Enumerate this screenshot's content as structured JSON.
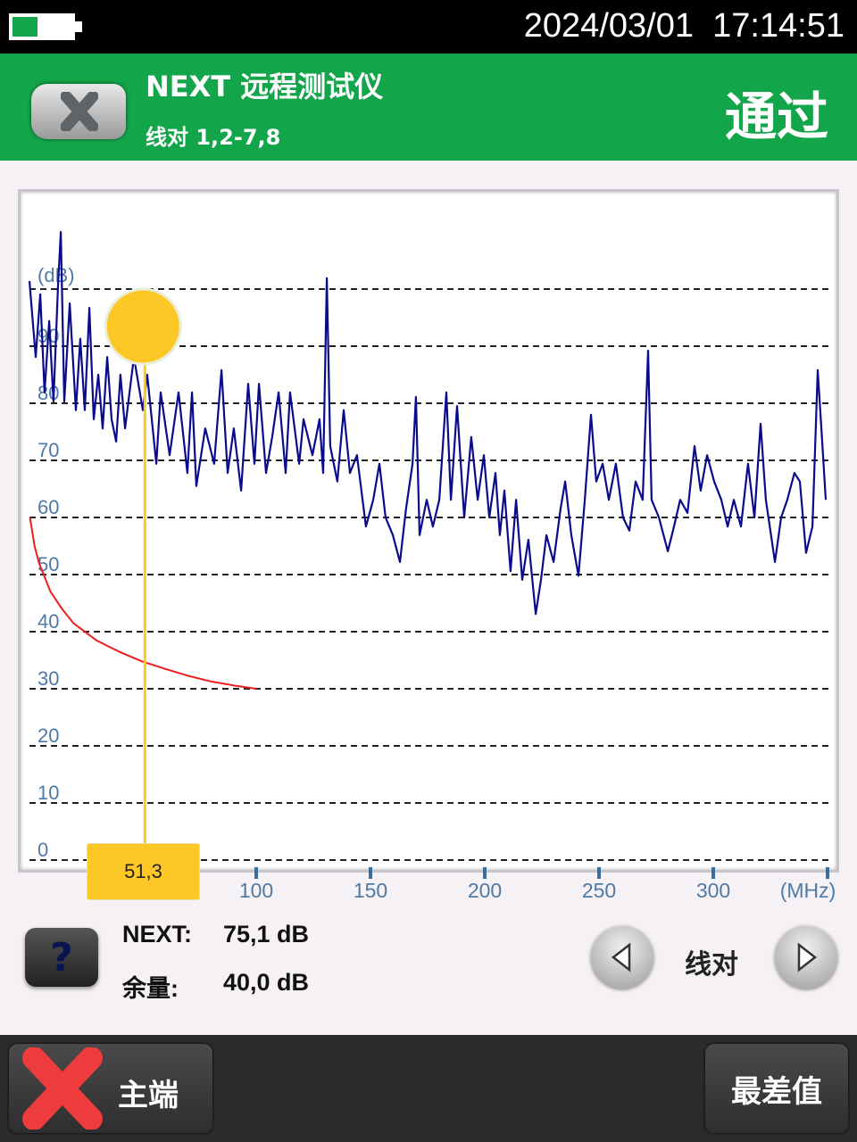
{
  "status_bar": {
    "datetime": "2024/03/01  17:14:51",
    "battery_level": 0.8,
    "battery_icon": "battery-icon"
  },
  "header": {
    "title": "NEXT 远程测试仪",
    "subtitle": "线对 1,2-7,8",
    "result": "通过",
    "back_icon": "close-x-icon",
    "color": "#13a54a"
  },
  "chart_data": {
    "type": "line",
    "xlabel": "(MHz)",
    "ylabel": "(dB)",
    "x_ticks": [
      100,
      150,
      200,
      250,
      300
    ],
    "y_ticks": [
      0,
      10,
      20,
      30,
      40,
      50,
      60,
      70,
      80,
      90
    ],
    "xlim": [
      0,
      350
    ],
    "ylim": [
      0,
      115
    ],
    "grid": true,
    "cursor": {
      "x": 51.3,
      "label": "51,3",
      "color": "#fdc825"
    },
    "series": [
      {
        "color": "#0a0a8c",
        "points": [
          [
            0.8,
            101.4
          ],
          [
            3.5,
            88.1
          ],
          [
            5.5,
            99.1
          ],
          [
            7.4,
            81.9
          ],
          [
            9.4,
            94.4
          ],
          [
            11.3,
            80.3
          ],
          [
            13.3,
            100.6
          ],
          [
            14.5,
            110
          ],
          [
            16,
            80.3
          ],
          [
            18.4,
            97.5
          ],
          [
            21.1,
            78.8
          ],
          [
            23,
            91.3
          ],
          [
            25,
            78.8
          ],
          [
            27,
            96.7
          ],
          [
            28.9,
            77.2
          ],
          [
            30.9,
            85
          ],
          [
            32.8,
            75.6
          ],
          [
            34.8,
            88.1
          ],
          [
            36.7,
            77.2
          ],
          [
            38.7,
            73.3
          ],
          [
            40.6,
            85
          ],
          [
            42.6,
            75.6
          ],
          [
            46.5,
            88.1
          ],
          [
            50.4,
            78.8
          ],
          [
            52.3,
            85
          ],
          [
            56.3,
            69.4
          ],
          [
            58.2,
            81.9
          ],
          [
            62.1,
            70.9
          ],
          [
            66,
            81.9
          ],
          [
            69.9,
            67.8
          ],
          [
            71.9,
            81.9
          ],
          [
            73.8,
            65.5
          ],
          [
            77.7,
            75.6
          ],
          [
            81.6,
            69.4
          ],
          [
            84.8,
            85.8
          ],
          [
            87.5,
            67.8
          ],
          [
            90.2,
            75.6
          ],
          [
            93.4,
            64.7
          ],
          [
            96.5,
            83.4
          ],
          [
            99.2,
            69.4
          ],
          [
            101.2,
            83.4
          ],
          [
            104.3,
            67.8
          ],
          [
            107,
            74.1
          ],
          [
            109.8,
            81.9
          ],
          [
            112.9,
            67.8
          ],
          [
            114.8,
            81.9
          ],
          [
            118.8,
            69.4
          ],
          [
            120.7,
            77.2
          ],
          [
            124.6,
            70.9
          ],
          [
            127.7,
            77.2
          ],
          [
            129.3,
            67.8
          ],
          [
            130.9,
            101.9
          ],
          [
            132.4,
            72.5
          ],
          [
            135.5,
            66.3
          ],
          [
            138.3,
            78.8
          ],
          [
            141,
            67.8
          ],
          [
            144.1,
            70.9
          ],
          [
            148,
            58.4
          ],
          [
            151.2,
            63.1
          ],
          [
            153.9,
            69.4
          ],
          [
            156.6,
            60
          ],
          [
            159.8,
            56.9
          ],
          [
            162.9,
            52.2
          ],
          [
            165.6,
            61.6
          ],
          [
            168.4,
            69.4
          ],
          [
            169.9,
            81.1
          ],
          [
            171.5,
            56.9
          ],
          [
            174.6,
            63.1
          ],
          [
            177.3,
            58.4
          ],
          [
            180.1,
            63.1
          ],
          [
            183.2,
            81.9
          ],
          [
            185.2,
            63.1
          ],
          [
            187.9,
            79.5
          ],
          [
            191,
            60
          ],
          [
            194.1,
            74.1
          ],
          [
            196.9,
            63.1
          ],
          [
            199.6,
            70.9
          ],
          [
            202,
            60
          ],
          [
            204.7,
            67.8
          ],
          [
            206.6,
            56.9
          ],
          [
            208.6,
            64.7
          ],
          [
            211.3,
            50.6
          ],
          [
            213.7,
            63.1
          ],
          [
            216.4,
            49.1
          ],
          [
            219.1,
            56.1
          ],
          [
            222.3,
            43.1
          ],
          [
            224.6,
            49.1
          ],
          [
            227,
            56.9
          ],
          [
            230.1,
            52.2
          ],
          [
            233.2,
            61.6
          ],
          [
            235.2,
            66.3
          ],
          [
            237.9,
            56.9
          ],
          [
            241,
            49.8
          ],
          [
            243.8,
            63.1
          ],
          [
            246.5,
            78
          ],
          [
            248.8,
            66.3
          ],
          [
            251.6,
            69.4
          ],
          [
            254.3,
            63.1
          ],
          [
            257.4,
            69.4
          ],
          [
            260.5,
            60
          ],
          [
            263.3,
            57.7
          ],
          [
            266,
            66.3
          ],
          [
            269.1,
            63.1
          ],
          [
            271.5,
            89.2
          ],
          [
            273,
            63.1
          ],
          [
            276.2,
            60
          ],
          [
            280.1,
            54.1
          ],
          [
            282.8,
            58.4
          ],
          [
            285.5,
            63.1
          ],
          [
            288.7,
            60.8
          ],
          [
            291.8,
            72.5
          ],
          [
            294.5,
            64.7
          ],
          [
            297.3,
            70.9
          ],
          [
            300.4,
            66.3
          ],
          [
            303.5,
            63.1
          ],
          [
            306.3,
            58.4
          ],
          [
            309,
            63.1
          ],
          [
            312.1,
            58.4
          ],
          [
            315.2,
            69.4
          ],
          [
            318,
            60
          ],
          [
            320.7,
            76.4
          ],
          [
            323,
            63.1
          ],
          [
            327,
            52.2
          ],
          [
            329.7,
            60
          ],
          [
            332.4,
            63.1
          ],
          [
            335.5,
            67.8
          ],
          [
            337.9,
            66.3
          ],
          [
            340.6,
            53.8
          ],
          [
            343.4,
            58.4
          ],
          [
            345.7,
            85.8
          ],
          [
            347.3,
            75.6
          ],
          [
            349.2,
            63.1
          ]
        ]
      },
      {
        "color": "#ee1c1c",
        "points": [
          [
            1,
            60
          ],
          [
            3,
            55
          ],
          [
            5,
            52
          ],
          [
            10,
            47
          ],
          [
            15,
            44
          ],
          [
            20,
            41.5
          ],
          [
            30,
            38.5
          ],
          [
            40,
            36.5
          ],
          [
            50,
            34.8
          ],
          [
            60,
            33.5
          ],
          [
            70,
            32.3
          ],
          [
            80,
            31.3
          ],
          [
            90,
            30.6
          ],
          [
            100,
            30
          ]
        ]
      }
    ]
  },
  "readout": {
    "next_label": "NEXT:",
    "next_value": "75,1 dB",
    "margin_label": "余量:",
    "margin_value": "40,0 dB",
    "help_label": "?"
  },
  "pair_nav": {
    "label": "线对",
    "prev_icon": "triangle-left-icon",
    "next_icon": "triangle-right-icon"
  },
  "bottom": {
    "main_label": "主端",
    "main_icon": "red-x-fail-icon",
    "worst_label": "最差值"
  }
}
